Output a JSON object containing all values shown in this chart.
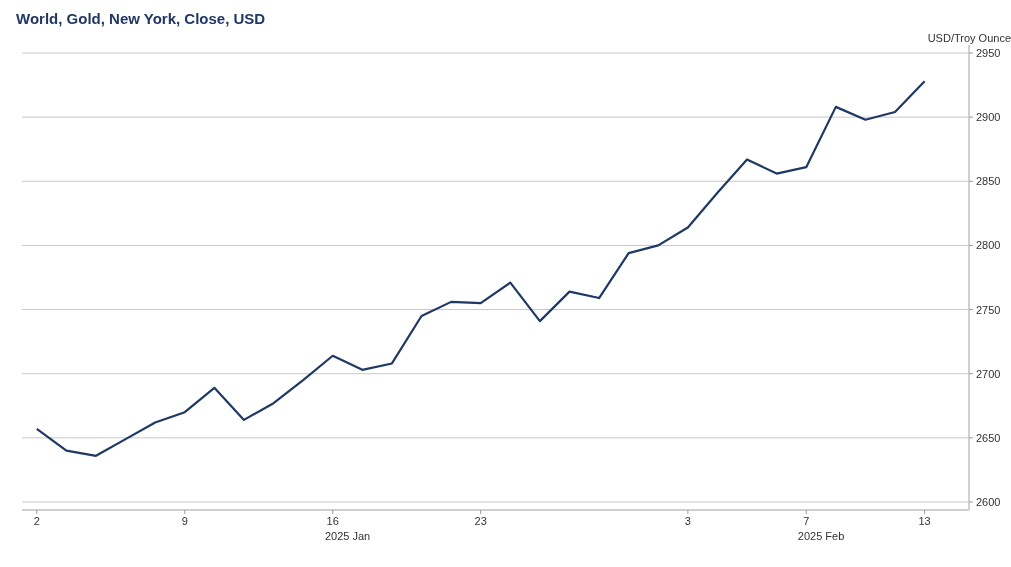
{
  "chart_data": {
    "type": "line",
    "title": "World, Gold, New York, Close, USD",
    "ylabel": "USD/Troy Ounce",
    "categories": [
      "2",
      null,
      null,
      null,
      null,
      "9",
      null,
      null,
      null,
      null,
      "16",
      null,
      null,
      null,
      null,
      "23",
      null,
      null,
      null,
      null,
      null,
      null,
      "3",
      null,
      null,
      null,
      "7",
      null,
      null,
      null,
      "13",
      null
    ],
    "series": [
      {
        "color": "#1f3864",
        "values": [
          2657,
          2640,
          2636,
          2649,
          2662,
          2670,
          2689,
          2664,
          2677,
          2695,
          2714,
          2703,
          2708,
          2745,
          2756,
          2755,
          2771,
          2741,
          2764,
          2759,
          2794,
          2800,
          2814,
          2841,
          2867,
          2856,
          2861,
          2908,
          2898,
          2904,
          2928,
          null
        ]
      }
    ],
    "ylim": [
      2600,
      2950
    ],
    "yticks": [
      2600,
      2650,
      2700,
      2750,
      2800,
      2850,
      2900,
      2950
    ],
    "grid": "y",
    "annotations": [
      "2025 Jan",
      "2025 Feb"
    ]
  }
}
